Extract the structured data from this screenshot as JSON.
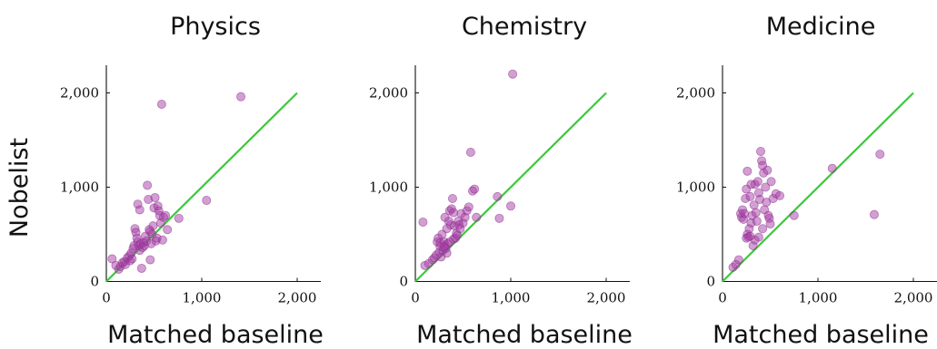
{
  "figure": {
    "ylabel": "Nobelist",
    "colors": {
      "points": "#a640a6",
      "reference_line": "#3cc83c",
      "axes": "#111111"
    }
  },
  "chart_data": [
    {
      "type": "scatter",
      "title": "Physics",
      "xlabel": "Matched baseline",
      "ylabel": "Nobelist",
      "xlim": [
        0,
        2200
      ],
      "ylim": [
        0,
        2300
      ],
      "xticks": [
        0,
        1000,
        2000
      ],
      "xtick_labels": [
        "0",
        "1,000",
        "2,000"
      ],
      "yticks": [
        0,
        1000,
        2000
      ],
      "ytick_labels": [
        "0",
        "1,000",
        "2,000"
      ],
      "reference_line": {
        "x": [
          0,
          2000
        ],
        "y": [
          0,
          2000
        ]
      },
      "points": [
        [
          60,
          240
        ],
        [
          100,
          170
        ],
        [
          130,
          130
        ],
        [
          150,
          160
        ],
        [
          170,
          200
        ],
        [
          190,
          210
        ],
        [
          200,
          180
        ],
        [
          220,
          250
        ],
        [
          240,
          270
        ],
        [
          250,
          220
        ],
        [
          260,
          300
        ],
        [
          270,
          240
        ],
        [
          280,
          350
        ],
        [
          290,
          380
        ],
        [
          300,
          560
        ],
        [
          310,
          520
        ],
        [
          320,
          460
        ],
        [
          330,
          420
        ],
        [
          340,
          380
        ],
        [
          350,
          330
        ],
        [
          360,
          400
        ],
        [
          370,
          140
        ],
        [
          380,
          360
        ],
        [
          390,
          410
        ],
        [
          400,
          380
        ],
        [
          410,
          480
        ],
        [
          420,
          430
        ],
        [
          430,
          1020
        ],
        [
          440,
          870
        ],
        [
          450,
          550
        ],
        [
          460,
          530
        ],
        [
          460,
          230
        ],
        [
          470,
          400
        ],
        [
          480,
          500
        ],
        [
          490,
          590
        ],
        [
          500,
          780
        ],
        [
          510,
          890
        ],
        [
          520,
          430
        ],
        [
          530,
          460
        ],
        [
          540,
          800
        ],
        [
          550,
          750
        ],
        [
          560,
          700
        ],
        [
          570,
          620
        ],
        [
          580,
          1880
        ],
        [
          590,
          440
        ],
        [
          600,
          680
        ],
        [
          620,
          700
        ],
        [
          640,
          550
        ],
        [
          760,
          670
        ],
        [
          1050,
          860
        ],
        [
          1410,
          1960
        ],
        [
          330,
          820
        ],
        [
          350,
          760
        ]
      ]
    },
    {
      "type": "scatter",
      "title": "Chemistry",
      "xlabel": "Matched baseline",
      "ylabel": "",
      "xlim": [
        0,
        2200
      ],
      "ylim": [
        0,
        2300
      ],
      "xticks": [
        0,
        1000,
        2000
      ],
      "xtick_labels": [
        "0",
        "1,000",
        "2,000"
      ],
      "yticks": [
        0,
        1000,
        2000
      ],
      "ytick_labels": [
        "0",
        "1,000",
        "2,000"
      ],
      "reference_line": {
        "x": [
          0,
          2000
        ],
        "y": [
          0,
          2000
        ]
      },
      "points": [
        [
          80,
          630
        ],
        [
          100,
          170
        ],
        [
          140,
          190
        ],
        [
          180,
          230
        ],
        [
          200,
          250
        ],
        [
          220,
          280
        ],
        [
          230,
          420
        ],
        [
          240,
          460
        ],
        [
          250,
          310
        ],
        [
          260,
          370
        ],
        [
          270,
          260
        ],
        [
          280,
          500
        ],
        [
          290,
          330
        ],
        [
          300,
          420
        ],
        [
          310,
          380
        ],
        [
          320,
          350
        ],
        [
          330,
          560
        ],
        [
          340,
          400
        ],
        [
          350,
          640
        ],
        [
          360,
          750
        ],
        [
          370,
          600
        ],
        [
          380,
          770
        ],
        [
          390,
          880
        ],
        [
          400,
          450
        ],
        [
          410,
          590
        ],
        [
          420,
          460
        ],
        [
          430,
          510
        ],
        [
          440,
          490
        ],
        [
          450,
          640
        ],
        [
          460,
          600
        ],
        [
          470,
          560
        ],
        [
          480,
          720
        ],
        [
          500,
          620
        ],
        [
          520,
          680
        ],
        [
          540,
          750
        ],
        [
          560,
          790
        ],
        [
          580,
          1370
        ],
        [
          600,
          960
        ],
        [
          620,
          980
        ],
        [
          640,
          680
        ],
        [
          860,
          900
        ],
        [
          880,
          670
        ],
        [
          1000,
          800
        ],
        [
          1020,
          2200
        ],
        [
          300,
          360
        ],
        [
          330,
          300
        ],
        [
          360,
          420
        ],
        [
          400,
          730
        ],
        [
          260,
          410
        ],
        [
          310,
          680
        ]
      ]
    },
    {
      "type": "scatter",
      "title": "Medicine",
      "xlabel": "Matched baseline",
      "ylabel": "",
      "xlim": [
        0,
        2200
      ],
      "ylim": [
        0,
        2300
      ],
      "xticks": [
        0,
        1000,
        2000
      ],
      "xtick_labels": [
        "0",
        "1,000",
        "2,000"
      ],
      "yticks": [
        0,
        1000,
        2000
      ],
      "ytick_labels": [
        "0",
        "1,000",
        "2,000"
      ],
      "reference_line": {
        "x": [
          0,
          2000
        ],
        "y": [
          0,
          2000
        ]
      },
      "points": [
        [
          110,
          150
        ],
        [
          140,
          180
        ],
        [
          170,
          230
        ],
        [
          190,
          720
        ],
        [
          200,
          680
        ],
        [
          210,
          760
        ],
        [
          220,
          660
        ],
        [
          230,
          720
        ],
        [
          240,
          880
        ],
        [
          250,
          980
        ],
        [
          260,
          500
        ],
        [
          270,
          470
        ],
        [
          280,
          560
        ],
        [
          290,
          900
        ],
        [
          300,
          620
        ],
        [
          310,
          700
        ],
        [
          320,
          380
        ],
        [
          330,
          810
        ],
        [
          340,
          1030
        ],
        [
          350,
          730
        ],
        [
          360,
          640
        ],
        [
          370,
          1060
        ],
        [
          380,
          940
        ],
        [
          390,
          870
        ],
        [
          400,
          1380
        ],
        [
          410,
          1280
        ],
        [
          420,
          1230
        ],
        [
          430,
          1150
        ],
        [
          440,
          760
        ],
        [
          450,
          1000
        ],
        [
          460,
          840
        ],
        [
          470,
          1180
        ],
        [
          480,
          700
        ],
        [
          490,
          670
        ],
        [
          500,
          610
        ],
        [
          510,
          1060
        ],
        [
          530,
          880
        ],
        [
          560,
          930
        ],
        [
          600,
          910
        ],
        [
          750,
          700
        ],
        [
          1150,
          1200
        ],
        [
          1590,
          710
        ],
        [
          1650,
          1350
        ],
        [
          260,
          1170
        ],
        [
          300,
          1030
        ],
        [
          340,
          440
        ],
        [
          380,
          470
        ],
        [
          420,
          560
        ],
        [
          250,
          460
        ],
        [
          290,
          480
        ]
      ]
    }
  ]
}
